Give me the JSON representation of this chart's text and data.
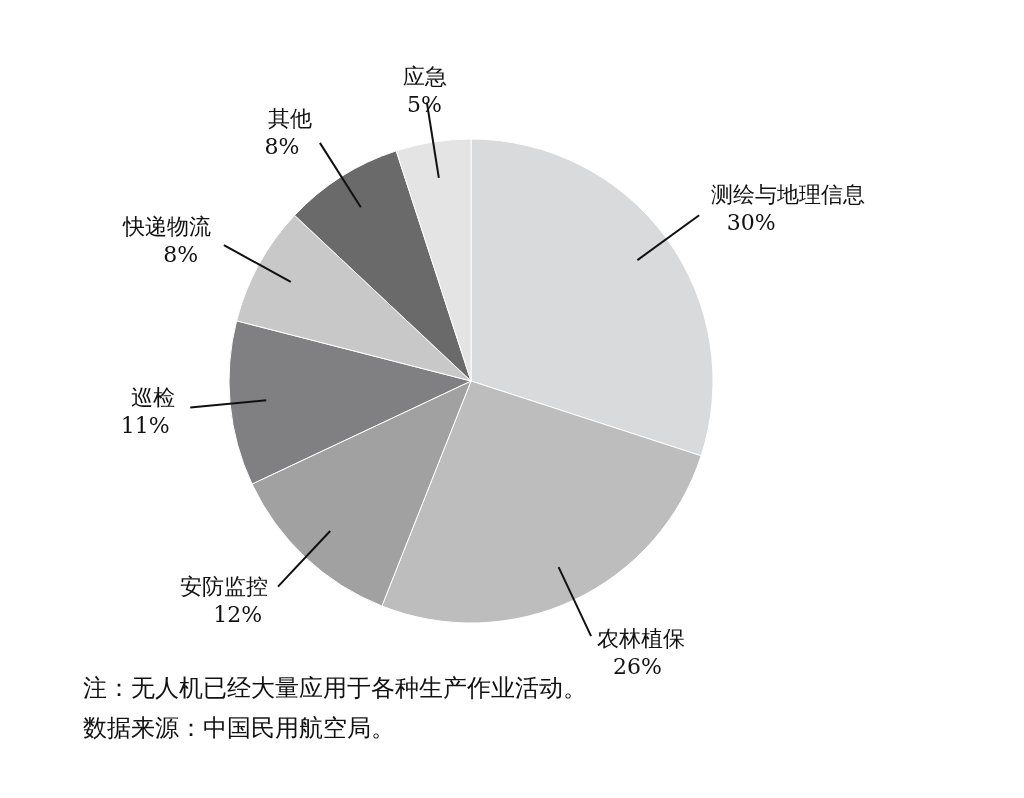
{
  "chart_data": {
    "type": "pie",
    "categories": [
      "测绘与地理信息",
      "农林植保",
      "安防监控",
      "巡检",
      "快递物流",
      "其他",
      "应急"
    ],
    "values": [
      30,
      26,
      12,
      11,
      8,
      8,
      5
    ],
    "value_labels": [
      "30%",
      "26%",
      "12%",
      "11%",
      "8%",
      "8%",
      "5%"
    ],
    "colors": [
      "#d9dadb",
      "#bdbdbd",
      "#a1a1a2",
      "#808082",
      "#c8c8c8",
      "#6a6a6a",
      "#e4e4e4"
    ],
    "annotations": [
      "注：无人机已经大量应用于各种生产作业活动。",
      "数据来源：中国民用航空局。"
    ]
  }
}
